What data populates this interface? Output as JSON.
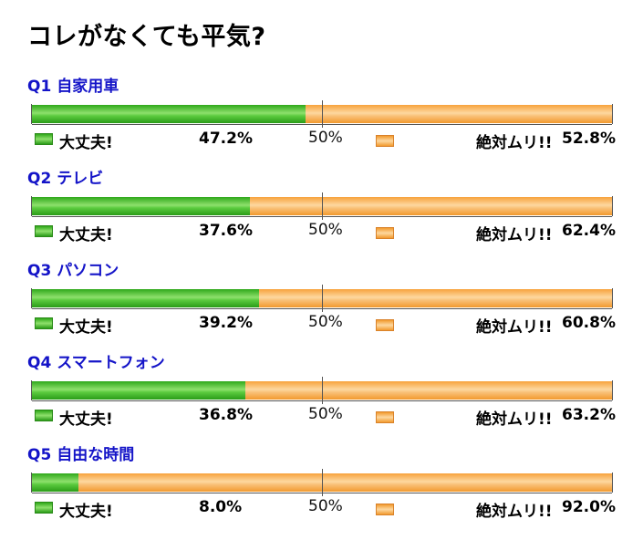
{
  "title": "コレがなくても平気?",
  "legend": {
    "ok_label": "大丈夫!",
    "ng_label": "絶対ムリ!!",
    "mid_label": "50%",
    "ok_color": "#3cb82a",
    "ng_color": "#f5a03a"
  },
  "chart_data": {
    "type": "bar",
    "stacked": true,
    "orientation": "horizontal",
    "title": "コレがなくても平気?",
    "categories": [
      "Q1 自家用車",
      "Q2 テレビ",
      "Q3 パソコン",
      "Q4 スマートフォン",
      "Q5 自由な時間"
    ],
    "series": [
      {
        "name": "大丈夫!",
        "values": [
          47.2,
          37.6,
          39.2,
          36.8,
          8.0
        ]
      },
      {
        "name": "絶対ムリ!!",
        "values": [
          52.8,
          62.4,
          60.8,
          63.2,
          92.0
        ]
      }
    ],
    "value_labels_ok": [
      "47.2%",
      "37.6%",
      "39.2%",
      "36.8%",
      "8.0%"
    ],
    "value_labels_ng": [
      "52.8%",
      "62.4%",
      "60.8%",
      "63.2%",
      "92.0%"
    ],
    "xlim": [
      0,
      100
    ]
  }
}
